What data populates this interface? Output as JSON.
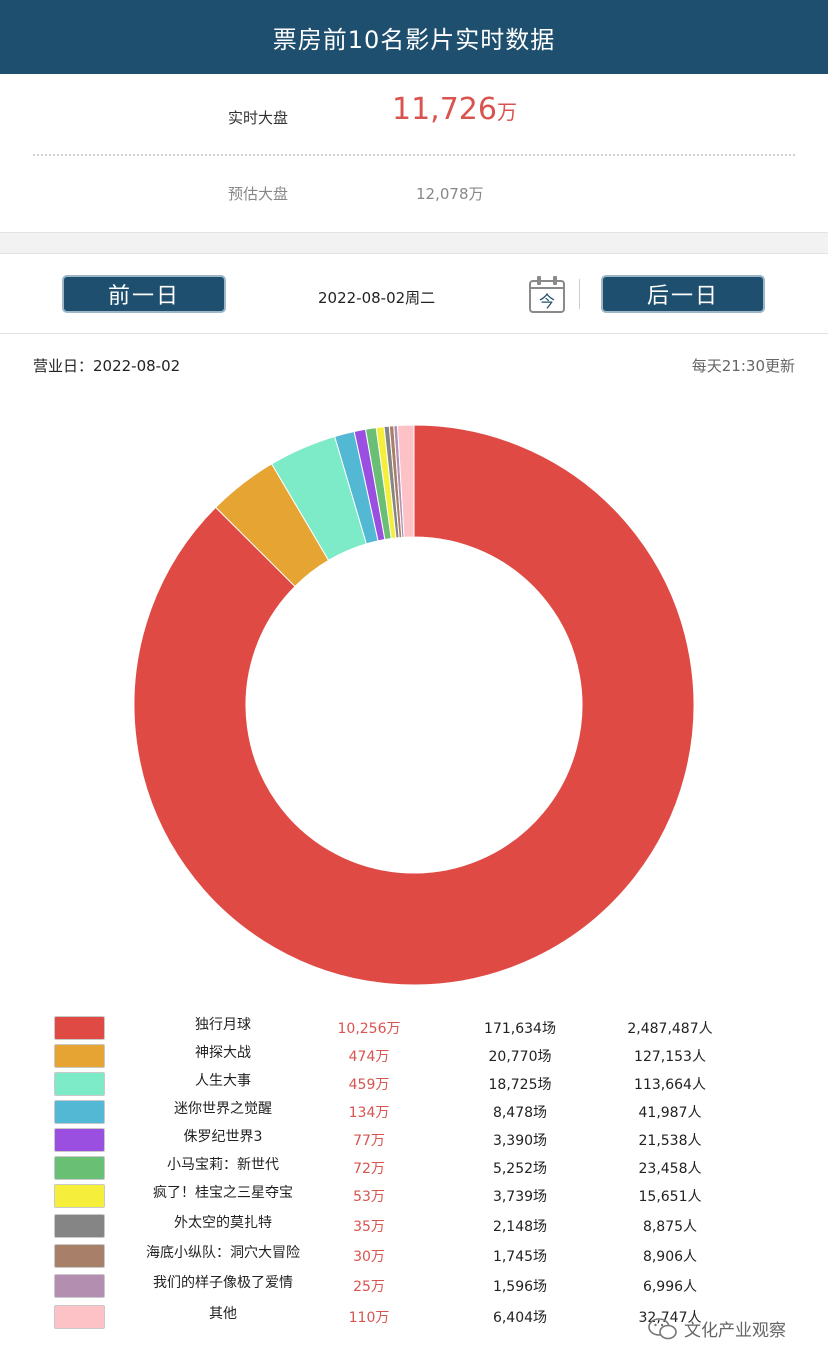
{
  "header": {
    "title": "票房前10名影片实时数据"
  },
  "summary": {
    "realtime_label": "实时大盘",
    "realtime_value": "11,726",
    "realtime_unit": "万",
    "estimate_label": "预估大盘",
    "estimate_value": "12,078万"
  },
  "nav": {
    "prev_label": "前一日",
    "date": "2022-08-02周二",
    "today_icon_label": "今",
    "next_label": "后一日"
  },
  "info": {
    "business_day": "营业日：2022-08-02",
    "update_note": "每天21:30更新"
  },
  "chart_data": {
    "type": "pie",
    "donut": true,
    "categories": [
      "独行月球",
      "神探大战",
      "人生大事",
      "迷你世界之觉醒",
      "侏罗纪世界3",
      "小马宝莉：新世代",
      "疯了！桂宝之三星夺宝",
      "外太空的莫扎特",
      "海底小纵队：洞穴大冒险",
      "我们的样子像极了爱情",
      "其他"
    ],
    "values": [
      10256,
      474,
      459,
      134,
      77,
      72,
      53,
      35,
      30,
      25,
      110
    ],
    "colors": [
      "#e04a44",
      "#e6a532",
      "#7eebc8",
      "#52b8d4",
      "#9b4fe0",
      "#69c074",
      "#f5ef3c",
      "#858585",
      "#a8806a",
      "#b48eb0",
      "#fcc2c6"
    ]
  },
  "legend": [
    {
      "name": "独行月球",
      "box": "10,256万",
      "shows": "171,634场",
      "people": "2,487,487人",
      "color": "#e04a44"
    },
    {
      "name": "神探大战",
      "box": "474万",
      "shows": "20,770场",
      "people": "127,153人",
      "color": "#e6a532"
    },
    {
      "name": "人生大事",
      "box": "459万",
      "shows": "18,725场",
      "people": "113,664人",
      "color": "#7eebc8"
    },
    {
      "name": "迷你世界之觉醒",
      "box": "134万",
      "shows": "8,478场",
      "people": "41,987人",
      "color": "#52b8d4"
    },
    {
      "name": "侏罗纪世界3",
      "box": "77万",
      "shows": "3,390场",
      "people": "21,538人",
      "color": "#9b4fe0"
    },
    {
      "name": "小马宝莉：新世代",
      "box": "72万",
      "shows": "5,252场",
      "people": "23,458人",
      "color": "#69c074"
    },
    {
      "name": "疯了！桂宝之三星夺宝",
      "box": "53万",
      "shows": "3,739场",
      "people": "15,651人",
      "color": "#f5ef3c"
    },
    {
      "name": "外太空的莫扎特",
      "box": "35万",
      "shows": "2,148场",
      "people": "8,875人",
      "color": "#858585"
    },
    {
      "name": "海底小纵队：洞穴大冒险",
      "box": "30万",
      "shows": "1,745场",
      "people": "8,906人",
      "color": "#a8806a"
    },
    {
      "name": "我们的样子像极了爱情",
      "box": "25万",
      "shows": "1,596场",
      "people": "6,996人",
      "color": "#b48eb0"
    },
    {
      "name": "其他",
      "box": "110万",
      "shows": "6,404场",
      "people": "32,747人",
      "color": "#fcc2c6"
    }
  ],
  "watermark": {
    "icon": "wechat-icon",
    "text": "文化产业观察"
  }
}
